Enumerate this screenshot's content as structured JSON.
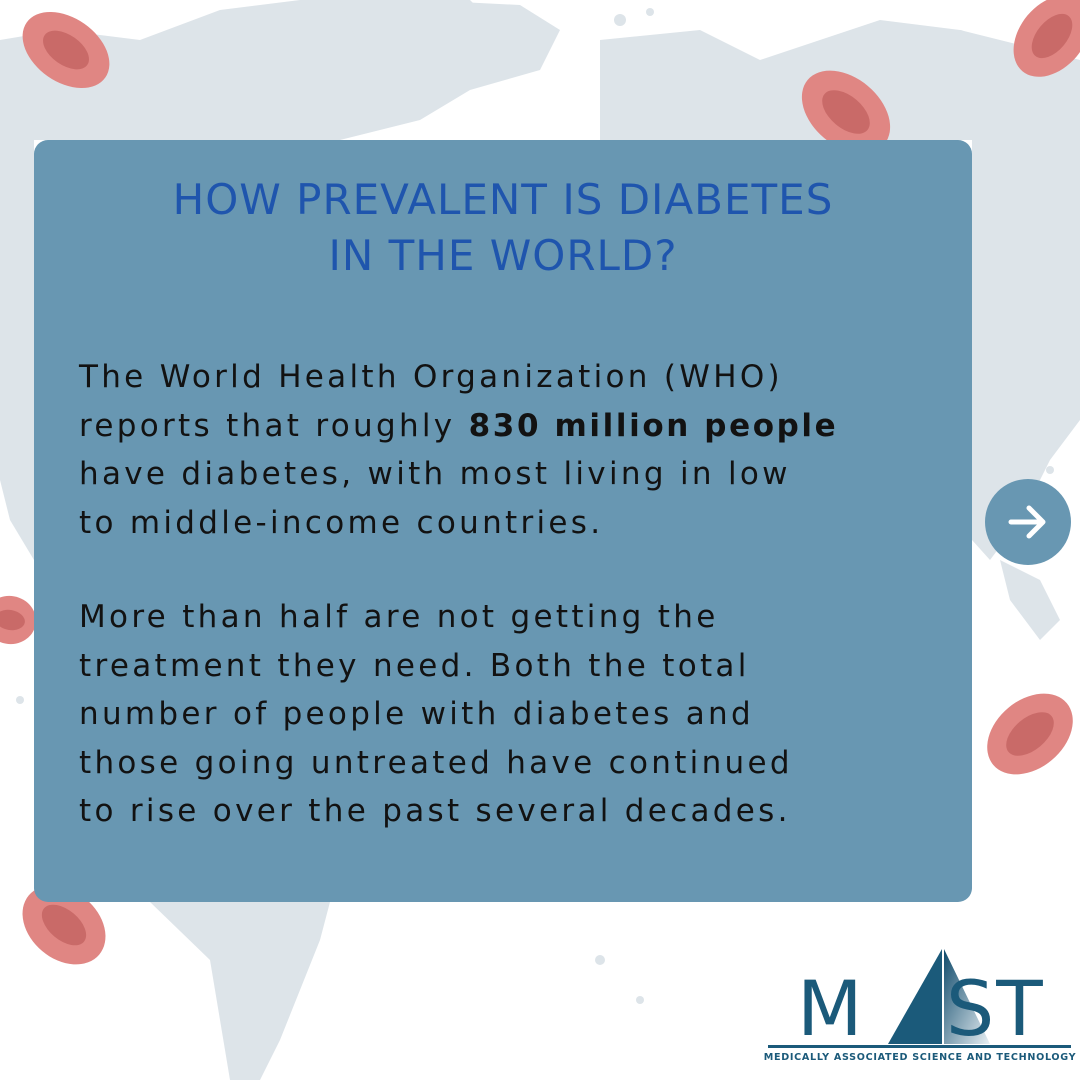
{
  "title": {
    "line1": "HOW PREVALENT IS  DIABETES",
    "line2": "IN THE WORLD?"
  },
  "paragraph1": {
    "line1": "The World Health Organization (WHO)",
    "line2_prefix": "reports that roughly ",
    "line2_bold": "830 million people",
    "line3": "have diabetes, with most living in low",
    "line4": "to middle-income countries."
  },
  "paragraph2": {
    "line1": "More than half are not getting the",
    "line2": "treatment they need. Both the total",
    "line3": "number of people with diabetes and",
    "line4": "those going untreated have continued",
    "line5": "to rise over the past several decades."
  },
  "next_button": {
    "icon": "arrow-right-icon"
  },
  "logo": {
    "letter_m": "M",
    "letter_a": "A",
    "letters_st": "ST",
    "tagline": "MEDICALLY ASSOCIATED SCIENCE AND TECHNOLOGY"
  },
  "colors": {
    "card": "#6897b2",
    "title": "#1f55ad",
    "body_text": "#121212",
    "map": "#dde4e9",
    "blood_cell": "#e08683",
    "blood_cell_center": "#c96a68",
    "logo": "#1b5a7a"
  }
}
